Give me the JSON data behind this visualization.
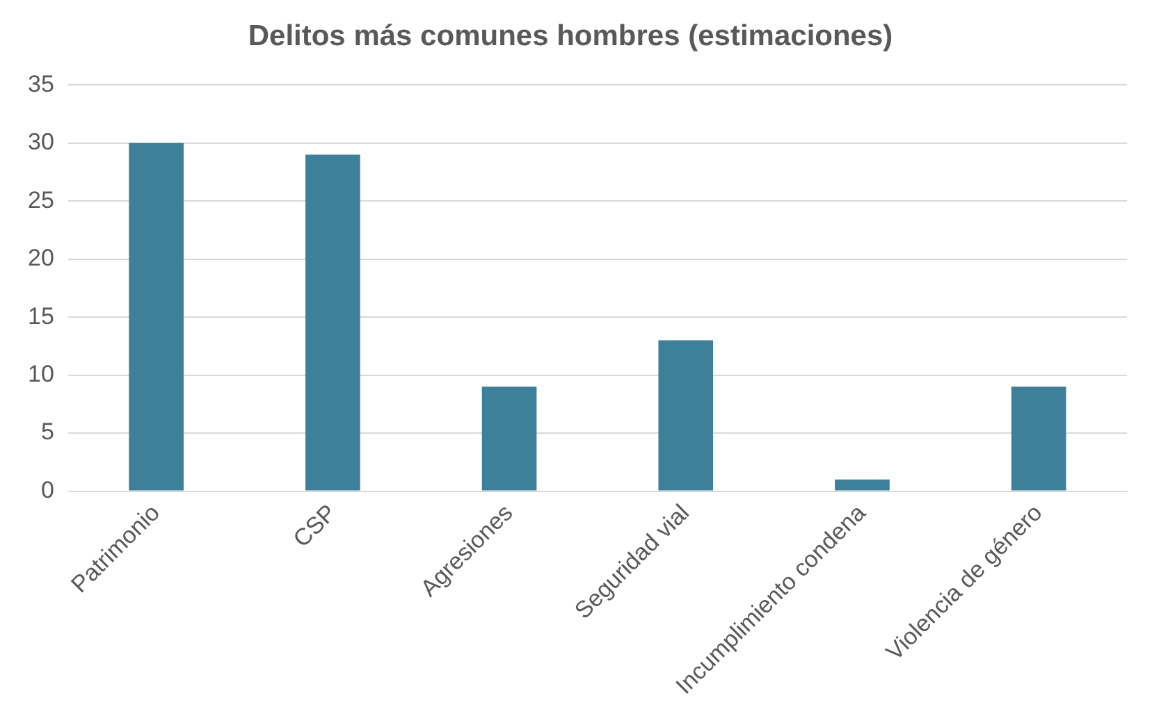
{
  "chart_data": {
    "type": "bar",
    "title": "Delitos más comunes hombres (estimaciones)",
    "categories": [
      "Patrimonio",
      "CSP",
      "Agresiones",
      "Seguridad vial",
      "Incumplimiento condena",
      "Violencia de género"
    ],
    "values": [
      30,
      29,
      9,
      13,
      1,
      9
    ],
    "color": "#3e7f99",
    "ylim": [
      0,
      35
    ],
    "yticks": [
      0,
      5,
      10,
      15,
      20,
      25,
      30,
      35
    ],
    "grid": "y",
    "legend": false
  }
}
